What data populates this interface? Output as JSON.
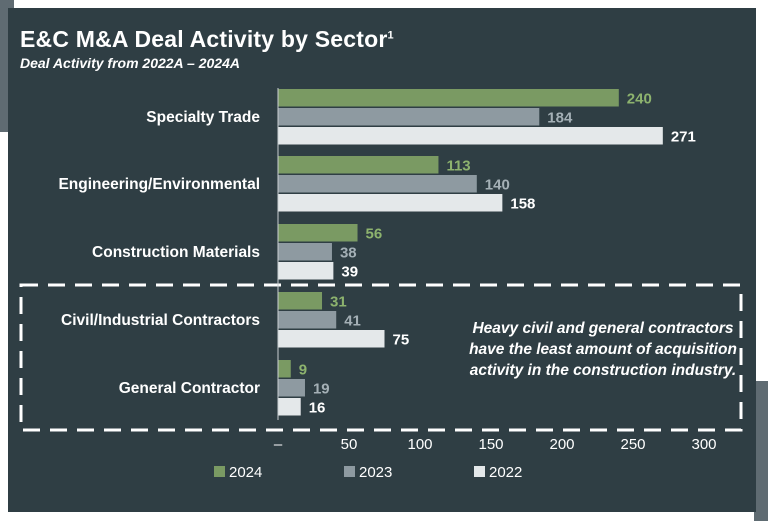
{
  "chart_data": {
    "type": "bar",
    "orientation": "horizontal",
    "title": "E&C M&A Deal Activity by Sector",
    "title_footnote": "1",
    "subtitle": "Deal Activity from 2022A – 2024A",
    "categories": [
      "Specialty Trade",
      "Engineering/Environmental",
      "Construction Materials",
      "Civil/Industrial Contractors",
      "General Contractor"
    ],
    "series": [
      {
        "name": "2024",
        "color": "#7a9a63",
        "label_color": "#8db36e",
        "values": [
          240,
          113,
          56,
          31,
          9
        ]
      },
      {
        "name": "2023",
        "color": "#8e9aa1",
        "label_color": "#a4b0b6",
        "values": [
          184,
          140,
          38,
          41,
          19
        ]
      },
      {
        "name": "2022",
        "color": "#e4e8ea",
        "label_color": "#ffffff",
        "values": [
          271,
          158,
          39,
          75,
          16
        ]
      }
    ],
    "xlim": [
      0,
      300
    ],
    "x_ticks": [
      "–",
      "50",
      "100",
      "150",
      "200",
      "250",
      "300"
    ],
    "x_tick_values": [
      0,
      50,
      100,
      150,
      200,
      250,
      300
    ],
    "legend_position": "bottom",
    "annotation": "Heavy civil and general contractors have the least amount of acquisition activity in the construction industry.",
    "highlighted_categories": [
      "Civil/Industrial Contractors",
      "General Contractor"
    ]
  }
}
